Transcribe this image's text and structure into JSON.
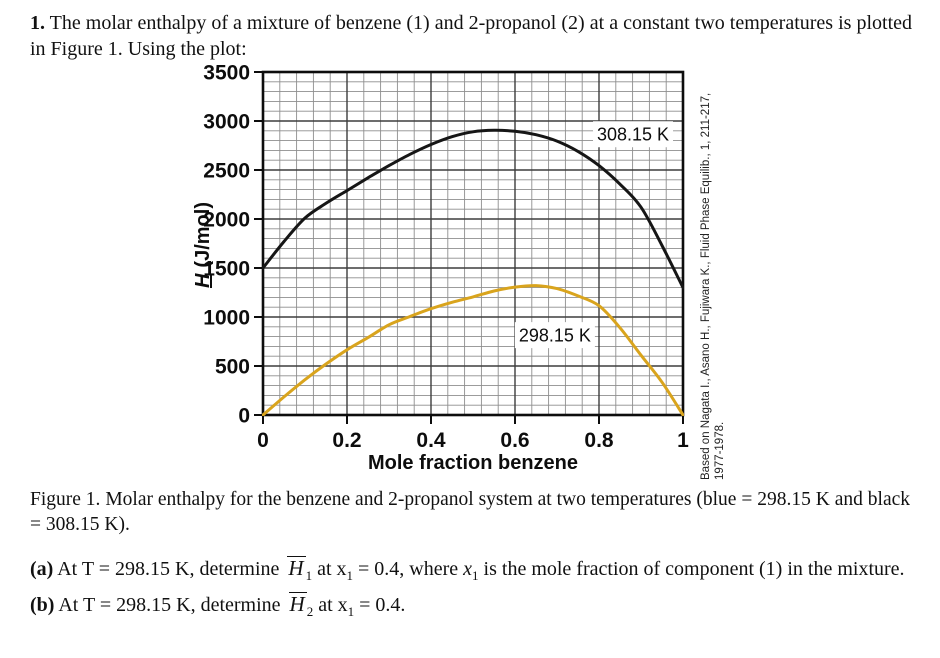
{
  "intro": {
    "number": "1.",
    "text": " The molar enthalpy of a mixture of benzene (1) and 2-propanol (2) at a constant two temperatures is plotted in Figure 1. Using the plot:"
  },
  "figure": {
    "caption": "Figure 1. Molar enthalpy for the benzene and 2-propanol system at two temperatures (blue = 298.15 K and black = 308.15 K).",
    "credit_line1": "Based on Nagata I., Asano H., Fujiwara K., Fluid Phase Equilib., 1, 211-217,",
    "credit_line2": "1977-1978."
  },
  "chart_data": {
    "type": "line",
    "title": "",
    "xlabel": "Mole fraction benzene",
    "ylabel_symbol": "H",
    "ylabel_units": "(J/mol)",
    "xlim": [
      0,
      1
    ],
    "ylim": [
      0,
      3500
    ],
    "xticks": [
      "0",
      "0.2",
      "0.4",
      "0.6",
      "0.8",
      "1"
    ],
    "yticks": [
      "0",
      "500",
      "1000",
      "1500",
      "2000",
      "2500",
      "3000",
      "3500"
    ],
    "grid": {
      "x_minor": 0.04,
      "x_major": 0.2,
      "y_minor": 100,
      "y_major": 500,
      "visible": true
    },
    "legend_position": "inline-annotations",
    "x": [
      0,
      0.05,
      0.1,
      0.15,
      0.2,
      0.25,
      0.3,
      0.35,
      0.4,
      0.45,
      0.5,
      0.55,
      0.6,
      0.65,
      0.7,
      0.75,
      0.8,
      0.85,
      0.9,
      0.95,
      1
    ],
    "series": [
      {
        "name": "308.15 K",
        "color": "#161616",
        "values": [
          1500,
          1770,
          2010,
          2160,
          2290,
          2420,
          2545,
          2660,
          2760,
          2840,
          2890,
          2905,
          2895,
          2860,
          2795,
          2690,
          2545,
          2355,
          2120,
          1730,
          1300
        ]
      },
      {
        "name": "298.15 K",
        "color": "#d9a41d",
        "values": [
          0,
          185,
          360,
          520,
          665,
          790,
          920,
          1005,
          1085,
          1150,
          1205,
          1265,
          1305,
          1320,
          1290,
          1215,
          1115,
          890,
          610,
          335,
          0
        ]
      }
    ],
    "annotations": [
      {
        "text": "308.15 K",
        "x": 0.881,
        "y": 2865
      },
      {
        "text": "298.15 K",
        "x": 0.695,
        "y": 815
      }
    ]
  },
  "part_a": {
    "label": "(a)",
    "seg1": " At T = 298.15 K, determine ",
    "H": "H",
    "H_sub": "1",
    "seg2": " at x",
    "x1_sub": "1",
    "seg3": " = 0.4, where ",
    "x_var": "x",
    "x_var_sub": "1",
    "seg4": " is the mole fraction of component (1) in the mixture."
  },
  "part_b": {
    "label": "(b)",
    "seg1": " At T = 298.15 K, determine ",
    "H": "H",
    "H_sub": "2",
    "seg2": " at x",
    "x1_sub": "1",
    "seg3": " = 0.4."
  }
}
